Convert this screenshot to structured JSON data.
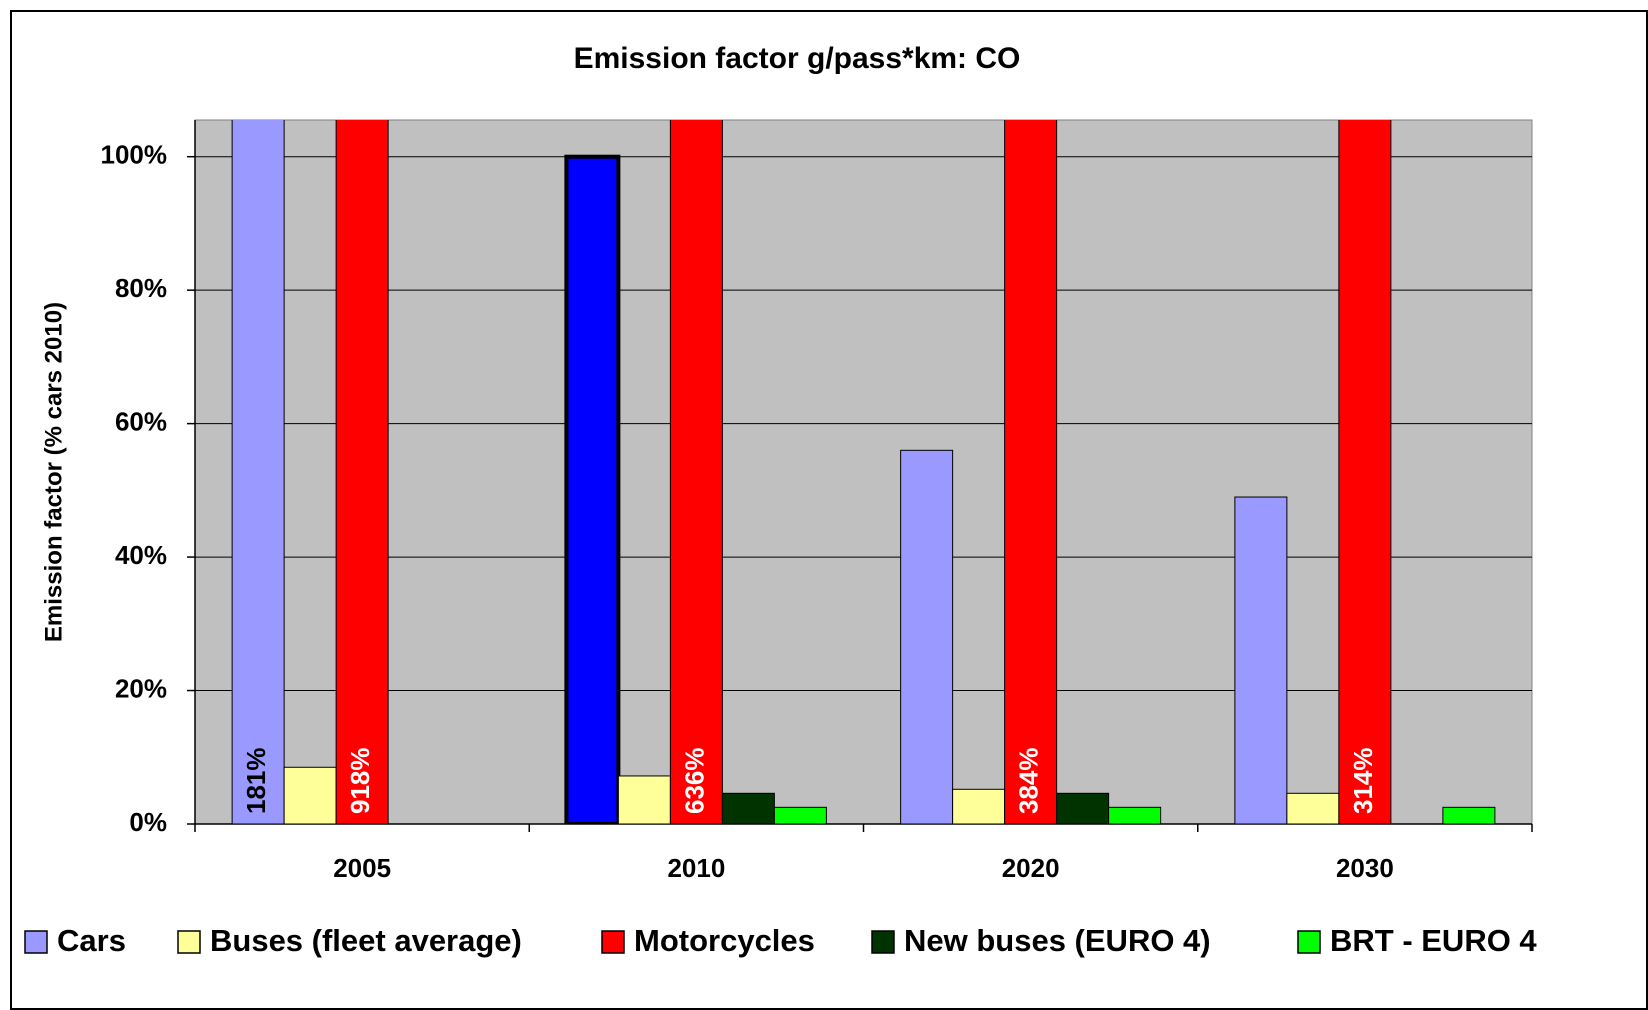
{
  "chart_data": {
    "type": "bar",
    "title": "Emission factor  g/pass*km: CO",
    "y_label": "Emission factor (% cars 2010)",
    "categories": [
      "2005",
      "2010",
      "2020",
      "2030"
    ],
    "series": [
      {
        "name": "Cars",
        "color": "#9999ff",
        "colors": [
          "#9999ff",
          "#0000ff",
          "#9999ff",
          "#9999ff"
        ],
        "values": [
          181,
          100,
          56,
          49
        ],
        "value_labels": [
          "181%",
          null,
          null,
          null
        ]
      },
      {
        "name": "Buses (fleet average)",
        "color": "#ffff99",
        "values": [
          8.5,
          7.2,
          5.2,
          4.6
        ]
      },
      {
        "name": "Motorcycles",
        "color": "#ff0000",
        "values": [
          918,
          636,
          384,
          314
        ],
        "value_labels": [
          "918%",
          "636%",
          "384%",
          "314%"
        ]
      },
      {
        "name": "New buses (EURO 4)",
        "color": "#003300",
        "values": [
          null,
          4.6,
          4.6,
          null
        ]
      },
      {
        "name": "BRT - EURO 4",
        "color": "#00ff00",
        "values": [
          null,
          2.5,
          2.5,
          2.5
        ]
      }
    ],
    "ylim": [
      0,
      105.5
    ],
    "yticks": [
      {
        "value": 0,
        "label": "0%"
      },
      {
        "value": 20,
        "label": "20%"
      },
      {
        "value": 40,
        "label": "40%"
      },
      {
        "value": 60,
        "label": "60%"
      },
      {
        "value": 80,
        "label": "80%"
      },
      {
        "value": 100,
        "label": "100%"
      }
    ],
    "grid": true,
    "legend": "bottom"
  }
}
